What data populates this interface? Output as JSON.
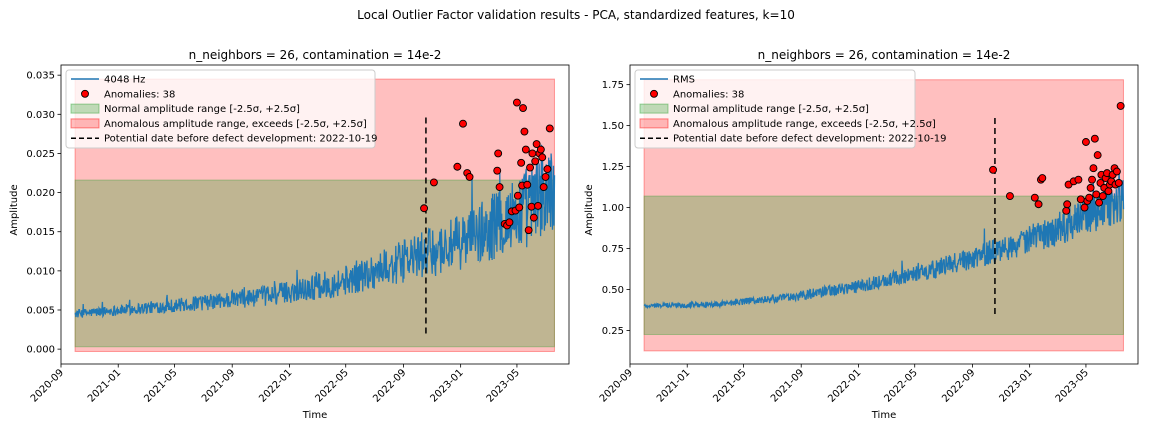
{
  "figure": {
    "suptitle": "Local Outlier Factor validation results - PCA, standardized features, k=10"
  },
  "chart_data": [
    {
      "type": "line",
      "title": "n_neighbors = 26, contamination = 14e-2",
      "xlabel": "Time",
      "ylabel": "Amplitude",
      "x_range": [
        "2020-09-01",
        "2023-08-20"
      ],
      "ylim": [
        -0.0019,
        0.0363
      ],
      "x_ticks": [
        "2020-09",
        "2021-01",
        "2021-05",
        "2021-09",
        "2022-01",
        "2022-05",
        "2022-09",
        "2023-01",
        "2023-05"
      ],
      "y_ticks": [
        0.0,
        0.005,
        0.01,
        0.015,
        0.02,
        0.025,
        0.03,
        0.035
      ],
      "y_tick_labels": [
        "0.000",
        "0.005",
        "0.010",
        "0.015",
        "0.020",
        "0.025",
        "0.030",
        "0.035"
      ],
      "legend_position": "upper-left",
      "series": [
        {
          "name": "4048 Hz",
          "color": "#1f77b4",
          "start_date": "2020-10-01",
          "end_date": "2023-07-20",
          "trend": [
            [
              0.0,
              0.0045
            ],
            [
              0.25,
              0.0058
            ],
            [
              0.4,
              0.0068
            ],
            [
              0.55,
              0.0085
            ],
            [
              0.7,
              0.0115
            ],
            [
              0.8,
              0.0135
            ],
            [
              0.9,
              0.0165
            ],
            [
              1.0,
              0.0205
            ]
          ]
        }
      ],
      "anomalies": {
        "label": "Anomalies: 38",
        "color": "#ff0000",
        "points": [
          [
            "2022-10-15",
            0.018
          ],
          [
            "2022-11-05",
            0.0213
          ],
          [
            "2022-12-25",
            0.0233
          ],
          [
            "2023-01-06",
            0.0288
          ],
          [
            "2023-01-15",
            0.0225
          ],
          [
            "2023-01-20",
            0.022
          ],
          [
            "2023-03-20",
            0.0228
          ],
          [
            "2023-03-22",
            0.025
          ],
          [
            "2023-03-25",
            0.0207
          ],
          [
            "2023-04-05",
            0.016
          ],
          [
            "2023-04-10",
            0.0158
          ],
          [
            "2023-04-15",
            0.0162
          ],
          [
            "2023-04-20",
            0.0176
          ],
          [
            "2023-04-28",
            0.0177
          ],
          [
            "2023-05-01",
            0.0315
          ],
          [
            "2023-05-03",
            0.0196
          ],
          [
            "2023-05-06",
            0.0181
          ],
          [
            "2023-05-10",
            0.0238
          ],
          [
            "2023-05-12",
            0.0209
          ],
          [
            "2023-05-14",
            0.0308
          ],
          [
            "2023-05-17",
            0.0278
          ],
          [
            "2023-05-20",
            0.0255
          ],
          [
            "2023-05-23",
            0.021
          ],
          [
            "2023-05-26",
            0.0152
          ],
          [
            "2023-05-29",
            0.0232
          ],
          [
            "2023-06-01",
            0.0182
          ],
          [
            "2023-06-03",
            0.025
          ],
          [
            "2023-06-06",
            0.0168
          ],
          [
            "2023-06-09",
            0.024
          ],
          [
            "2023-06-12",
            0.0262
          ],
          [
            "2023-06-15",
            0.0183
          ],
          [
            "2023-06-18",
            0.025
          ],
          [
            "2023-06-21",
            0.0255
          ],
          [
            "2023-06-24",
            0.0245
          ],
          [
            "2023-06-27",
            0.0207
          ],
          [
            "2023-07-01",
            0.022
          ],
          [
            "2023-07-05",
            0.023
          ],
          [
            "2023-07-10",
            0.0282
          ]
        ]
      },
      "normal_range": {
        "label": "Normal amplitude range [-2.5σ, +2.5σ]",
        "color": "#2ca02c",
        "low": 0.0003,
        "high": 0.0216
      },
      "anomalous_range": {
        "label": "Anomalous amplitude range, exceeds [-2.5σ, +2.5σ]",
        "color": "#ff0000",
        "low": -0.0003,
        "high": 0.0345
      },
      "defect_line": {
        "label": "Potential date before defect development: 2022-10-19",
        "date": "2022-10-19",
        "y0": 0.002,
        "y1": 0.03
      }
    },
    {
      "type": "line",
      "title": "n_neighbors = 26, contamination = 14e-2",
      "xlabel": "Time",
      "ylabel": "Amplitude",
      "x_range": [
        "2020-09-01",
        "2023-08-20"
      ],
      "ylim": [
        0.045,
        1.87
      ],
      "x_ticks": [
        "2020-09",
        "2021-01",
        "2021-05",
        "2021-09",
        "2022-01",
        "2022-05",
        "2022-09",
        "2023-01",
        "2023-05"
      ],
      "y_ticks": [
        0.25,
        0.5,
        0.75,
        1.0,
        1.25,
        1.5,
        1.75
      ],
      "y_tick_labels": [
        "0.25",
        "0.50",
        "0.75",
        "1.00",
        "1.25",
        "1.50",
        "1.75"
      ],
      "legend_position": "upper-left",
      "series": [
        {
          "name": "RMS",
          "color": "#1f77b4",
          "start_date": "2020-10-01",
          "end_date": "2023-07-20",
          "trend": [
            [
              0.0,
              0.4
            ],
            [
              0.15,
              0.41
            ],
            [
              0.3,
              0.45
            ],
            [
              0.45,
              0.52
            ],
            [
              0.6,
              0.62
            ],
            [
              0.75,
              0.75
            ],
            [
              0.85,
              0.85
            ],
            [
              1.0,
              1.05
            ]
          ]
        }
      ],
      "anomalies": {
        "label": "Anomalies: 38",
        "color": "#ff0000",
        "points": [
          [
            "2022-10-15",
            1.23
          ],
          [
            "2022-11-20",
            1.07
          ],
          [
            "2023-01-12",
            1.06
          ],
          [
            "2023-01-20",
            1.02
          ],
          [
            "2023-01-25",
            1.17
          ],
          [
            "2023-01-28",
            1.18
          ],
          [
            "2023-03-20",
            0.98
          ],
          [
            "2023-03-22",
            1.02
          ],
          [
            "2023-03-25",
            1.14
          ],
          [
            "2023-04-05",
            1.16
          ],
          [
            "2023-04-15",
            1.17
          ],
          [
            "2023-04-20",
            1.05
          ],
          [
            "2023-04-28",
            1.0
          ],
          [
            "2023-05-01",
            1.4
          ],
          [
            "2023-05-04",
            1.04
          ],
          [
            "2023-05-08",
            1.06
          ],
          [
            "2023-05-11",
            1.12
          ],
          [
            "2023-05-14",
            1.17
          ],
          [
            "2023-05-17",
            1.24
          ],
          [
            "2023-05-20",
            1.42
          ],
          [
            "2023-05-23",
            1.08
          ],
          [
            "2023-05-26",
            1.32
          ],
          [
            "2023-05-29",
            1.03
          ],
          [
            "2023-06-01",
            1.15
          ],
          [
            "2023-06-03",
            1.2
          ],
          [
            "2023-06-06",
            1.07
          ],
          [
            "2023-06-09",
            1.12
          ],
          [
            "2023-06-12",
            1.18
          ],
          [
            "2023-06-15",
            1.21
          ],
          [
            "2023-06-18",
            1.1
          ],
          [
            "2023-06-21",
            1.14
          ],
          [
            "2023-06-24",
            1.16
          ],
          [
            "2023-06-27",
            1.2
          ],
          [
            "2023-07-01",
            1.24
          ],
          [
            "2023-07-03",
            1.14
          ],
          [
            "2023-07-06",
            1.22
          ],
          [
            "2023-07-10",
            1.15
          ],
          [
            "2023-07-14",
            1.62
          ]
        ]
      },
      "normal_range": {
        "label": "Normal amplitude range [-2.5σ, +2.5σ]",
        "color": "#2ca02c",
        "low": 0.225,
        "high": 1.07
      },
      "anomalous_range": {
        "label": "Anomalous amplitude range, exceeds [-2.5σ, +2.5σ]",
        "color": "#ff0000",
        "low": 0.125,
        "high": 1.78
      },
      "defect_line": {
        "label": "Potential date before defect development: 2022-10-19",
        "date": "2022-10-19",
        "y0": 0.35,
        "y1": 1.55
      }
    }
  ]
}
